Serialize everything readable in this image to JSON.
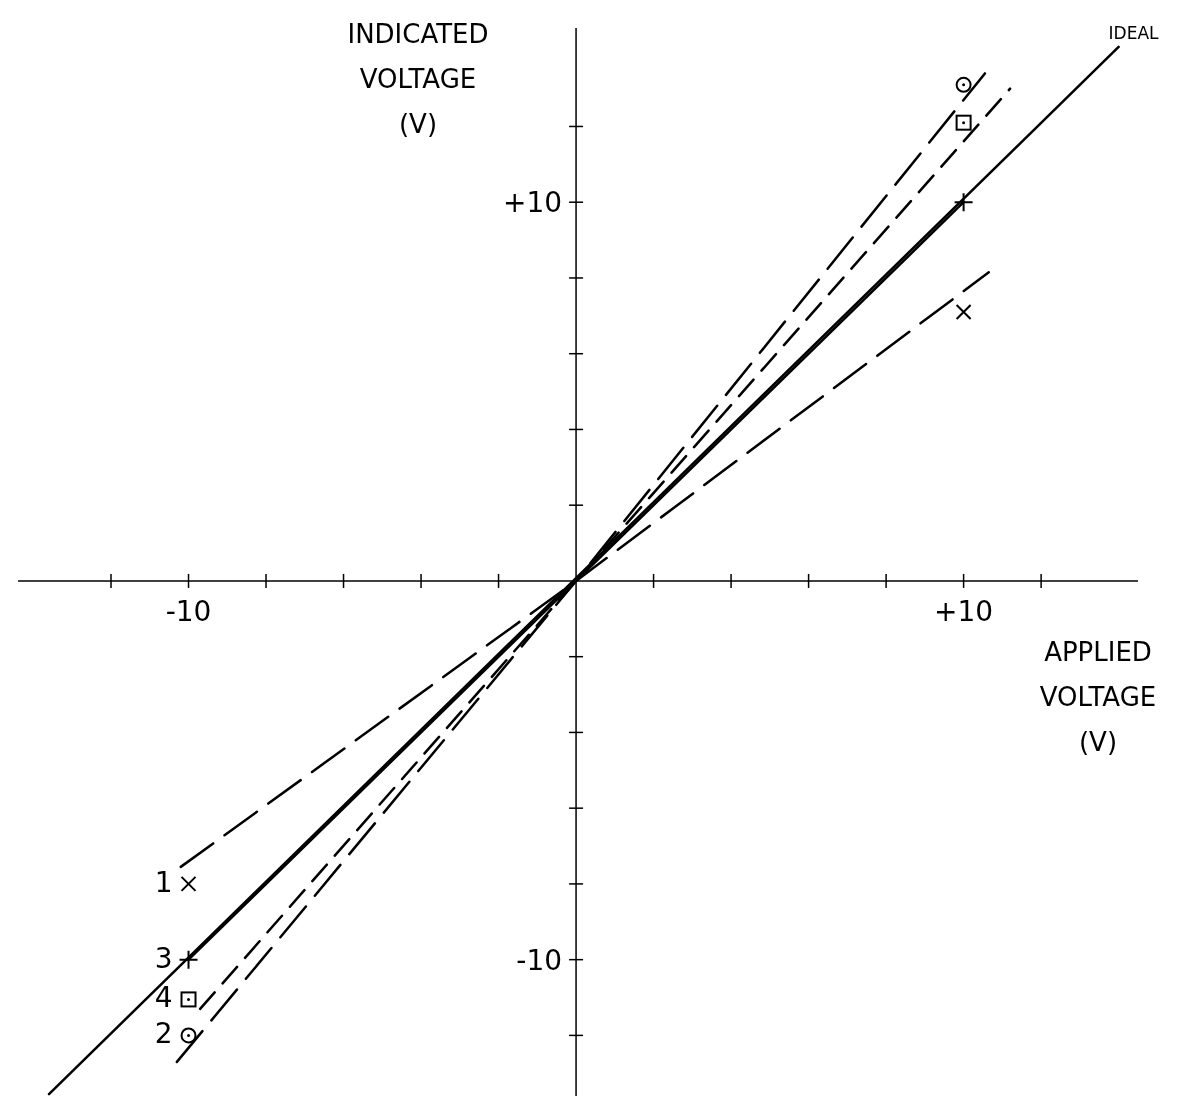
{
  "chart_data": {
    "type": "line",
    "xlabel": "APPLIED\nVOLTAGE\n(V)",
    "ylabel": "INDICATED\nVOLTAGE\n(V)",
    "xlim": [
      -14.4,
      14.5
    ],
    "ylim": [
      -13.6,
      14.6
    ],
    "xticks": [
      {
        "value": -12,
        "label": null
      },
      {
        "value": -10,
        "label": "-10"
      },
      {
        "value": -8,
        "label": null
      },
      {
        "value": -6,
        "label": null
      },
      {
        "value": -4,
        "label": null
      },
      {
        "value": -2,
        "label": null
      },
      {
        "value": 2,
        "label": null
      },
      {
        "value": 4,
        "label": null
      },
      {
        "value": 6,
        "label": null
      },
      {
        "value": 8,
        "label": null
      },
      {
        "value": 10,
        "label": "+10"
      },
      {
        "value": 12,
        "label": null
      }
    ],
    "yticks": [
      {
        "value": -12,
        "label": null
      },
      {
        "value": -10,
        "label": "-10"
      },
      {
        "value": -8,
        "label": null
      },
      {
        "value": -6,
        "label": null
      },
      {
        "value": -4,
        "label": null
      },
      {
        "value": -2,
        "label": null
      },
      {
        "value": 2,
        "label": null
      },
      {
        "value": 4,
        "label": null
      },
      {
        "value": 6,
        "label": null
      },
      {
        "value": 8,
        "label": null
      },
      {
        "value": 10,
        "label": "+10"
      },
      {
        "value": 12,
        "label": null
      }
    ],
    "grid": false,
    "series": [
      {
        "name": "IDEAL",
        "color": "#000000",
        "line_style": "solid",
        "x": [
          -13.6,
          14
        ],
        "values": [
          -13.55,
          14.1
        ]
      },
      {
        "color": "#000000",
        "line_style": "dashed",
        "x": [
          -10.2,
          0,
          10.65
        ],
        "values": [
          -7.55,
          0,
          8.15
        ]
      },
      {
        "color": "#000000",
        "line_style": "dashed",
        "x": [
          -10.3,
          0,
          10.55
        ],
        "values": [
          -12.7,
          0,
          13.4
        ]
      },
      {
        "color": "#000000",
        "line_style": "solid",
        "x": [
          -10,
          0,
          10
        ],
        "values": [
          -10,
          0,
          10
        ]
      },
      {
        "color": "#000000",
        "line_style": "dotted",
        "x": [
          -9.7,
          0,
          11.2
        ],
        "values": [
          -11.3,
          0,
          13.0
        ]
      },
      {
        "name": "1",
        "type": "scatter",
        "color": "#000000",
        "marker": "x",
        "x": [
          -10,
          10
        ],
        "values": [
          -8.0,
          7.1
        ]
      },
      {
        "name": "2",
        "type": "scatter",
        "color": "#000000",
        "marker": "circle",
        "x": [
          -10,
          10
        ],
        "values": [
          -12.0,
          13.1
        ]
      },
      {
        "name": "3",
        "type": "scatter",
        "color": "#000000",
        "marker": "cross",
        "x": [
          -10,
          10
        ],
        "values": [
          -10,
          10
        ]
      },
      {
        "name": "4",
        "type": "scatter",
        "color": "#000000",
        "marker": "square",
        "x": [
          -10,
          10
        ],
        "values": [
          -11.05,
          12.1
        ]
      }
    ]
  }
}
